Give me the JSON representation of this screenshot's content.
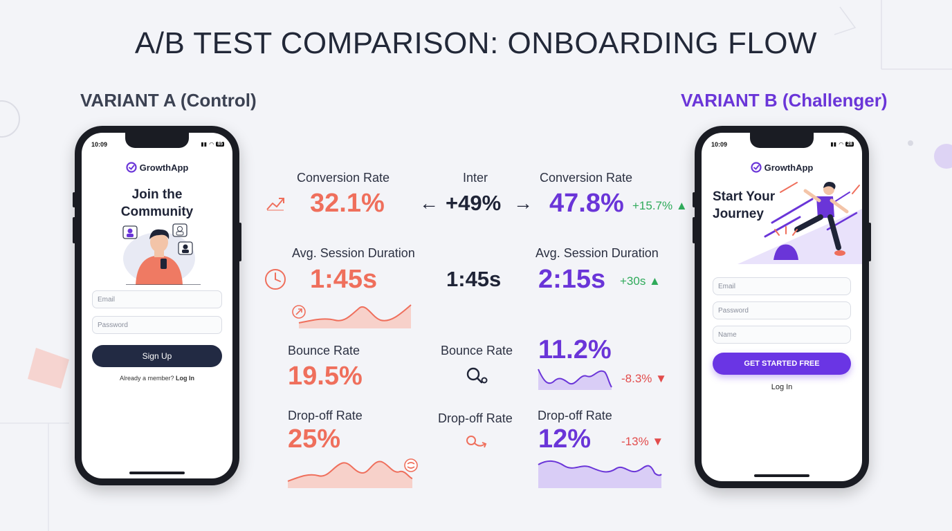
{
  "title": "A/B TEST COMPARISON: ONBOARDING FLOW",
  "variant_a": {
    "heading": "VARIANT A (Control)",
    "phone": {
      "time": "10:09",
      "battery": "85",
      "brand": "GrowthApp",
      "headline_line1": "Join the",
      "headline_line2": "Community",
      "email_placeholder": "Email",
      "password_placeholder": "Password",
      "signup_button": "Sign Up",
      "footer_text": "Already a member?",
      "footer_link": "Log In"
    }
  },
  "variant_b": {
    "heading": "VARIANT B (Challenger)",
    "phone": {
      "time": "10:09",
      "battery": "28",
      "brand": "GrowthApp",
      "headline_line1": "Start Your",
      "headline_line2": "Journey",
      "email_placeholder": "Email",
      "password_placeholder": "Password",
      "name_placeholder": "Name",
      "cta_button": "GET STARTED FREE",
      "login_link": "Log In"
    }
  },
  "metrics": {
    "conversion": {
      "label_a": "Conversion Rate",
      "value_a": "32.1%",
      "center_label": "Inter",
      "center_value": "+49%",
      "left_arrow": "←",
      "right_arrow": "→",
      "label_b": "Conversion Rate",
      "value_b": "47.8%",
      "delta_b": "+15.7% ▲"
    },
    "session": {
      "label_a": "Avg. Session Duration",
      "value_a": "1:45s",
      "center_value": "1:45s",
      "label_b": "Avg. Session Duration",
      "value_b": "2:15s",
      "delta_b": "+30s ▲"
    },
    "bounce": {
      "label_a": "Bounce Rate",
      "value_a": "19.5%",
      "center_label": "Bounce Rate",
      "value_b": "11.2%",
      "delta_b": "-8.3% ▼"
    },
    "dropoff": {
      "label_a": "Drop-off Rate",
      "value_a": "25%",
      "center_label": "Drop-off Rate",
      "label_b": "Drop-off Rate",
      "value_b": "12%",
      "delta_b": "-13% ▼"
    }
  },
  "icons": {
    "conversion_a": "trend-up-icon",
    "session_a": "clock-icon",
    "session_chart_badge": "arrow-badge-icon",
    "bounce_center": "bounce-magnifier-icon",
    "dropoff_center": "dropoff-icon",
    "dropoff_chart_badge": "swap-badge-icon"
  },
  "colors": {
    "control": "#ef6f5c",
    "challenger": "#6a35d8",
    "positive": "#2faa5a",
    "negative": "#e24c4c"
  }
}
